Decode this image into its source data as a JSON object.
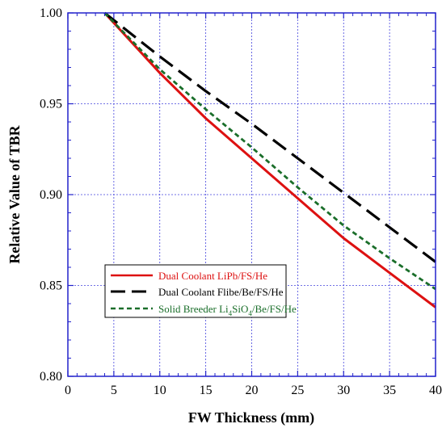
{
  "chart_data": {
    "type": "line",
    "xlabel": "FW Thickness (mm)",
    "ylabel": "Relative Value of TBR",
    "xlim": [
      0,
      40
    ],
    "ylim": [
      0.8,
      1.0
    ],
    "x_ticks": [
      0,
      5,
      10,
      15,
      20,
      25,
      30,
      35,
      40
    ],
    "x_tick_labels": [
      "0",
      "5",
      "10",
      "15",
      "20",
      "25",
      "30",
      "35",
      "40"
    ],
    "y_ticks": [
      0.8,
      0.85,
      0.9,
      0.95,
      1.0
    ],
    "y_tick_labels": [
      "0.80",
      "0.85",
      "0.90",
      "0.95",
      "1.00"
    ],
    "grid": true,
    "legend_position": "lower-left",
    "series": [
      {
        "name": "Dual Coolant LiPb/FS/He",
        "color": "#dd1111",
        "dash": "solid",
        "x": [
          4,
          10,
          15,
          20,
          25,
          30,
          35,
          40
        ],
        "y": [
          1.0,
          0.967,
          0.942,
          0.92,
          0.898,
          0.876,
          0.857,
          0.838
        ]
      },
      {
        "name": "Dual Coolant Flibe/Be/FS/He",
        "color": "#000000",
        "dash": "long-dash",
        "x": [
          4,
          10,
          15,
          20,
          25,
          30,
          35,
          40
        ],
        "y": [
          1.0,
          0.976,
          0.957,
          0.939,
          0.92,
          0.901,
          0.882,
          0.863
        ]
      },
      {
        "name": "Solid Breeder Li4SiO4/Be/FS/He",
        "name_parts": [
          "Solid Breeder Li",
          "4",
          "SiO",
          "4",
          "/Be/FS/He"
        ],
        "color": "#1a6e2a",
        "dash": "short-dash",
        "x": [
          4,
          10,
          15,
          20,
          25,
          30,
          35,
          40
        ],
        "y": [
          1.0,
          0.969,
          0.947,
          0.926,
          0.904,
          0.883,
          0.865,
          0.848
        ]
      }
    ]
  }
}
